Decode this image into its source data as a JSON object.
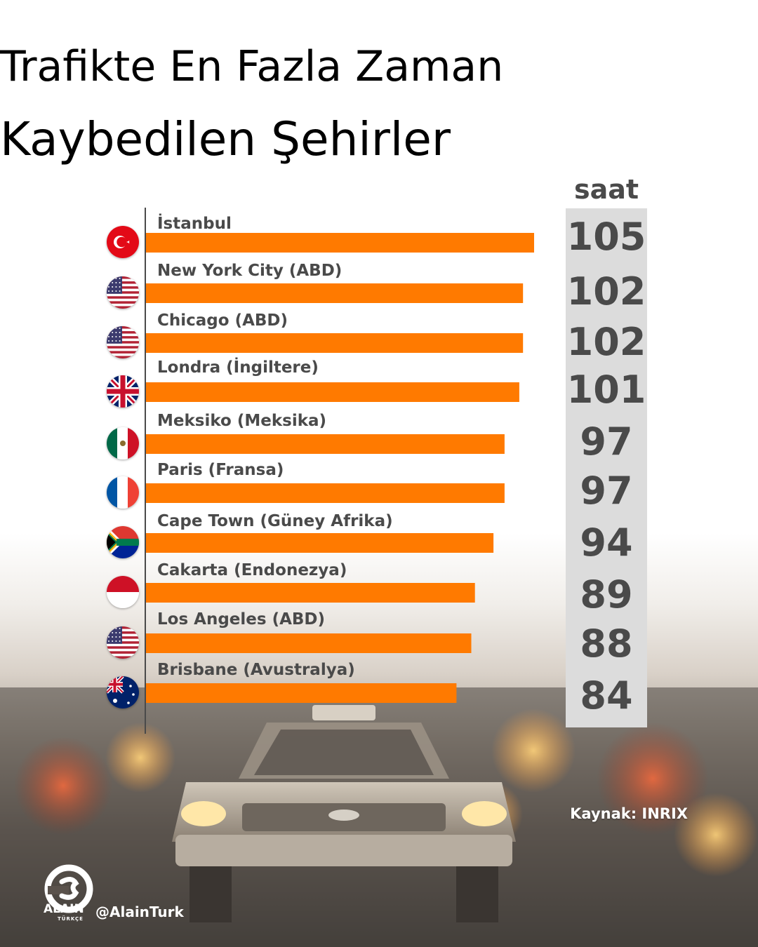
{
  "title_line1": "Trafikte En Fazla Zaman",
  "title_line2": "Kaybedilen Şehirler",
  "chart_data": {
    "type": "bar",
    "orientation": "horizontal",
    "unit": "saat",
    "categories": [
      "İstanbul",
      "New York City (ABD)",
      "Chicago (ABD)",
      "Londra (İngiltere)",
      "Meksiko (Meksika)",
      "Paris (Fransa)",
      "Cape Town (Güney Afrika)",
      "Cakarta (Endonezya)",
      "Los Angeles (ABD)",
      "Brisbane (Avustralya)"
    ],
    "values": [
      105,
      102,
      102,
      101,
      97,
      97,
      94,
      89,
      88,
      84
    ],
    "value_labels": [
      "105",
      "102",
      "102",
      "101",
      "97",
      "97",
      "94",
      "89",
      "88",
      "84"
    ],
    "flags": [
      "turkey-flag-icon",
      "usa-flag-icon",
      "usa-flag-icon",
      "uk-flag-icon",
      "mexico-flag-icon",
      "france-flag-icon",
      "south-africa-flag-icon",
      "indonesia-flag-icon",
      "usa-flag-icon",
      "australia-flag-icon"
    ],
    "bar_color": "#ff7a00"
  },
  "source": "Kaynak: INRIX",
  "brand": {
    "name": "ALAIN",
    "sub": "TÜRKÇE",
    "handle": "@AlainTurk"
  }
}
